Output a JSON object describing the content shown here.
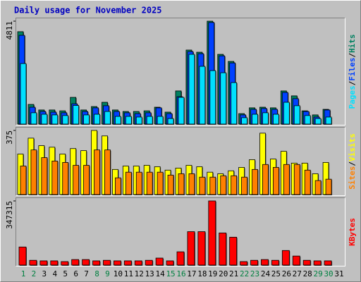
{
  "title": "Daily usage for November 2025",
  "chart_data": [
    {
      "type": "bar",
      "ylim": [
        0,
        4811
      ],
      "yticks": [
        4811
      ],
      "legend_separator": "/",
      "series": [
        {
          "name": "Hits",
          "color": "#008060",
          "values": [
            4320,
            920,
            660,
            660,
            620,
            1250,
            660,
            820,
            1020,
            660,
            590,
            590,
            620,
            790,
            560,
            1550,
            3460,
            3360,
            4811,
            3260,
            2930,
            490,
            760,
            790,
            760,
            1550,
            1320,
            620,
            430,
            690,
            0
          ]
        },
        {
          "name": "Files",
          "color": "#0040ff",
          "values": [
            4150,
            790,
            590,
            560,
            530,
            950,
            590,
            760,
            860,
            590,
            530,
            490,
            530,
            760,
            490,
            1280,
            3390,
            3290,
            4750,
            3190,
            2860,
            430,
            690,
            730,
            690,
            1480,
            1190,
            590,
            330,
            660,
            0
          ]
        },
        {
          "name": "Pages",
          "color": "#00e0ff",
          "values": [
            2830,
            530,
            460,
            430,
            400,
            870,
            430,
            460,
            590,
            360,
            360,
            330,
            360,
            360,
            260,
            1250,
            3260,
            2700,
            2500,
            2400,
            1940,
            300,
            460,
            530,
            460,
            1020,
            860,
            400,
            260,
            330,
            0
          ]
        }
      ]
    },
    {
      "type": "bar",
      "ylim": [
        0,
        375
      ],
      "yticks": [
        375
      ],
      "legend_separator": "/",
      "series": [
        {
          "name": "Visits",
          "color": "#ffff00",
          "values": [
            237,
            330,
            286,
            277,
            237,
            269,
            257,
            375,
            343,
            147,
            167,
            167,
            171,
            163,
            143,
            155,
            171,
            163,
            131,
            122,
            139,
            159,
            204,
            359,
            208,
            253,
            184,
            184,
            122,
            188,
            0
          ]
        },
        {
          "name": "Sites",
          "color": "#ff8000",
          "values": [
            167,
            261,
            216,
            196,
            188,
            171,
            171,
            261,
            261,
            98,
            131,
            131,
            131,
            131,
            114,
            122,
            122,
            102,
            102,
            110,
            110,
            102,
            147,
            176,
            159,
            176,
            176,
            143,
            82,
            90,
            0
          ]
        }
      ]
    },
    {
      "type": "bar",
      "ylim": [
        0,
        347315
      ],
      "yticks": [
        347315
      ],
      "categories": [
        "1",
        "2",
        "3",
        "4",
        "5",
        "6",
        "7",
        "8",
        "9",
        "10",
        "11",
        "12",
        "13",
        "14",
        "15",
        "16",
        "17",
        "18",
        "19",
        "20",
        "21",
        "22",
        "23",
        "24",
        "25",
        "26",
        "27",
        "28",
        "29",
        "30",
        "31"
      ],
      "category_colors": [
        "#008040",
        "#008040",
        "#000000",
        "#000000",
        "#000000",
        "#000000",
        "#000000",
        "#008040",
        "#008040",
        "#000000",
        "#000000",
        "#000000",
        "#000000",
        "#000000",
        "#008040",
        "#008040",
        "#000000",
        "#000000",
        "#000000",
        "#000000",
        "#000000",
        "#008040",
        "#008040",
        "#000000",
        "#000000",
        "#000000",
        "#000000",
        "#000000",
        "#008040",
        "#008040",
        "#000000"
      ],
      "series": [
        {
          "name": "KBytes",
          "color": "#ff0000",
          "values": [
            98000,
            26000,
            23000,
            23000,
            19000,
            30000,
            30000,
            23000,
            26000,
            23000,
            23000,
            23000,
            26000,
            38000,
            23000,
            72000,
            181000,
            181000,
            347315,
            174000,
            151000,
            19000,
            26000,
            30000,
            26000,
            79000,
            49000,
            26000,
            23000,
            23000,
            0
          ]
        }
      ]
    }
  ]
}
